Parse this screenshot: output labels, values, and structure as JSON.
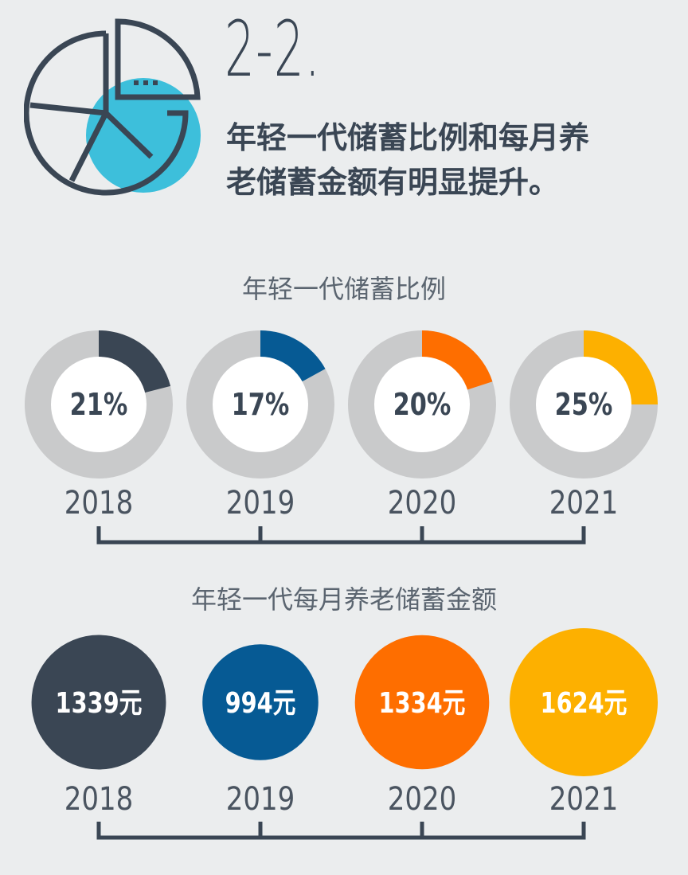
{
  "header": {
    "section_number": "2-2.",
    "headline_line1": "年轻一代储蓄比例和每月养",
    "headline_line2": "老储蓄金额有明显提升。",
    "icon": "pie-chart-icon"
  },
  "colors": {
    "background": "#ebedee",
    "text": "#3a4654",
    "ring_track": "#c9cacb",
    "icon_accent": "#3dbfdb",
    "series": [
      "#3a4654",
      "#065a94",
      "#fe6e00",
      "#fdb000"
    ]
  },
  "chart_data": [
    {
      "type": "pie",
      "title": "年轻一代储蓄比例",
      "categories": [
        "2018",
        "2019",
        "2020",
        "2021"
      ],
      "values": [
        21,
        17,
        20,
        25
      ],
      "labels": [
        "21%",
        "17%",
        "20%",
        "25%"
      ],
      "unit": "%"
    },
    {
      "type": "scatter",
      "title": "年轻一代每月养老储蓄金额",
      "categories": [
        "2018",
        "2019",
        "2020",
        "2021"
      ],
      "values": [
        1339,
        994,
        1334,
        1624
      ],
      "labels": [
        "1339元",
        "994元",
        "1334元",
        "1624元"
      ],
      "unit": "元"
    }
  ]
}
